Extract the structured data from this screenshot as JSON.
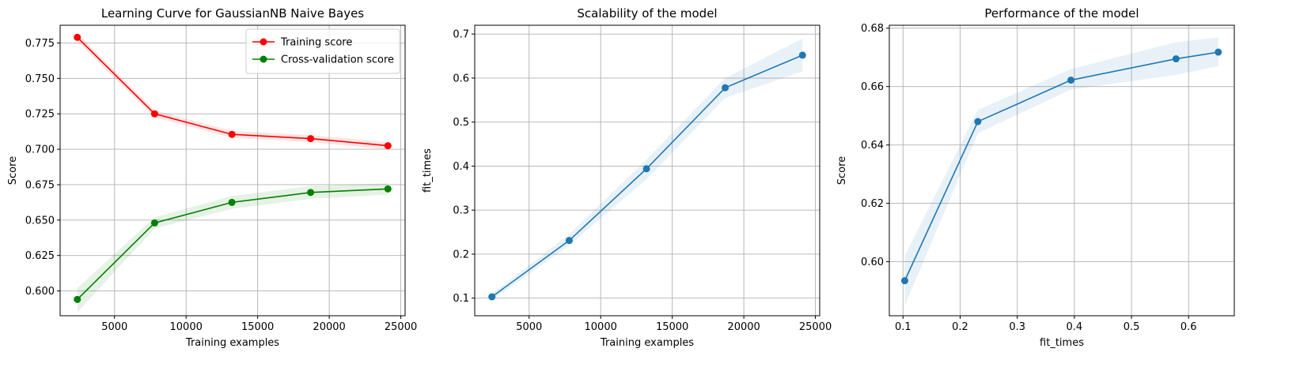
{
  "chart_data": [
    {
      "type": "line",
      "title": "Learning Curve for GaussianNB Naive Bayes",
      "xlabel": "Training examples",
      "ylabel": "Score",
      "xlim": [
        1200,
        25300
      ],
      "ylim": [
        0.5825,
        0.7875
      ],
      "xticks": [
        5000,
        10000,
        15000,
        20000,
        25000
      ],
      "xtick_labels": [
        "5000",
        "10000",
        "15000",
        "20000",
        "25000"
      ],
      "yticks": [
        0.6,
        0.625,
        0.65,
        0.675,
        0.7,
        0.725,
        0.75,
        0.775
      ],
      "ytick_labels": [
        "0.600",
        "0.625",
        "0.650",
        "0.675",
        "0.700",
        "0.725",
        "0.750",
        "0.775"
      ],
      "grid": true,
      "legend_position": "top-right",
      "x": [
        2400,
        7800,
        13200,
        18700,
        24100
      ],
      "series": [
        {
          "name": "Training score",
          "color": "#ff0000",
          "values": [
            0.779,
            0.725,
            0.7105,
            0.7075,
            0.7025
          ],
          "band_low": [
            0.776,
            0.7225,
            0.708,
            0.705,
            0.7
          ],
          "band_high": [
            0.782,
            0.7275,
            0.713,
            0.71,
            0.705
          ]
        },
        {
          "name": "Cross-validation score",
          "color": "#008000",
          "values": [
            0.594,
            0.648,
            0.6625,
            0.6695,
            0.672
          ],
          "band_low": [
            0.585,
            0.644,
            0.658,
            0.665,
            0.668
          ],
          "band_high": [
            0.602,
            0.652,
            0.667,
            0.674,
            0.676
          ]
        }
      ]
    },
    {
      "type": "line",
      "title": "Scalability of the model",
      "xlabel": "Training examples",
      "ylabel": "fit_times",
      "xlim": [
        1200,
        25300
      ],
      "ylim": [
        0.06,
        0.72
      ],
      "xticks": [
        5000,
        10000,
        15000,
        20000,
        25000
      ],
      "xtick_labels": [
        "5000",
        "10000",
        "15000",
        "20000",
        "25000"
      ],
      "yticks": [
        0.1,
        0.2,
        0.3,
        0.4,
        0.5,
        0.6,
        0.7
      ],
      "ytick_labels": [
        "0.1",
        "0.2",
        "0.3",
        "0.4",
        "0.5",
        "0.6",
        "0.7"
      ],
      "grid": true,
      "x": [
        2400,
        7800,
        13200,
        18700,
        24100
      ],
      "series": [
        {
          "color": "#1f77b4",
          "values": [
            0.103,
            0.231,
            0.394,
            0.578,
            0.652
          ],
          "band_low": [
            0.095,
            0.22,
            0.37,
            0.555,
            0.615
          ],
          "band_high": [
            0.11,
            0.245,
            0.415,
            0.6,
            0.69
          ]
        }
      ]
    },
    {
      "type": "line",
      "title": "Performance of the model",
      "xlabel": "fit_times",
      "ylabel": "Score",
      "xlim": [
        0.076,
        0.68
      ],
      "ylim": [
        0.5815,
        0.681
      ],
      "xticks": [
        0.1,
        0.2,
        0.3,
        0.4,
        0.5,
        0.6
      ],
      "xtick_labels": [
        "0.1",
        "0.2",
        "0.3",
        "0.4",
        "0.5",
        "0.6"
      ],
      "yticks": [
        0.6,
        0.62,
        0.64,
        0.66,
        0.68
      ],
      "ytick_labels": [
        "0.60",
        "0.62",
        "0.64",
        "0.66",
        "0.68"
      ],
      "grid": true,
      "x": [
        0.103,
        0.231,
        0.394,
        0.578,
        0.652
      ],
      "series": [
        {
          "color": "#1f77b4",
          "values": [
            0.5935,
            0.648,
            0.6622,
            0.6695,
            0.6718
          ],
          "band_low": [
            0.585,
            0.644,
            0.659,
            0.664,
            0.667
          ],
          "band_high": [
            0.602,
            0.652,
            0.666,
            0.6752,
            0.6768
          ]
        }
      ]
    }
  ]
}
